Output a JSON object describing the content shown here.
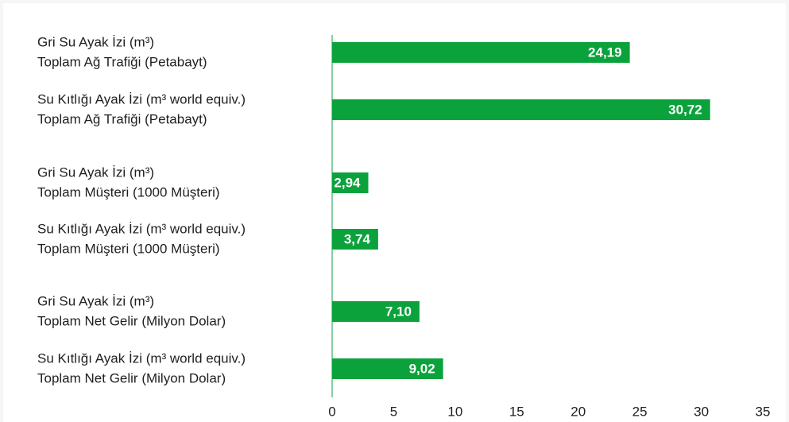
{
  "chart_data": {
    "type": "barh",
    "categories": [
      [
        "Gri Su Ayak İzi (m³)",
        "Toplam Ağ Trafiği (Petabayt)"
      ],
      [
        "Su Kıtlığı Ayak İzi (m³ world equiv.)",
        "Toplam Ağ Trafiği (Petabayt)"
      ],
      [
        "Gri Su Ayak İzi (m³)",
        "Toplam Müşteri (1000 Müşteri)"
      ],
      [
        "Su Kıtlığı Ayak İzi (m³ world equiv.)",
        "Toplam Müşteri (1000 Müşteri)"
      ],
      [
        "Gri Su Ayak İzi (m³)",
        "Toplam Net Gelir (Milyon Dolar)"
      ],
      [
        "Su Kıtlığı Ayak İzi (m³ world equiv.)",
        "Toplam Net Gelir (Milyon Dolar)"
      ]
    ],
    "values": [
      24.19,
      30.72,
      2.94,
      3.74,
      7.1,
      9.02
    ],
    "value_labels": [
      "24,19",
      "30,72",
      "2,94",
      "3,74",
      "7,10",
      "9,02"
    ],
    "color": "#0ba23c",
    "xlim": [
      0,
      35
    ],
    "xticks": [
      0,
      5,
      10,
      15,
      20,
      25,
      30,
      35
    ]
  }
}
